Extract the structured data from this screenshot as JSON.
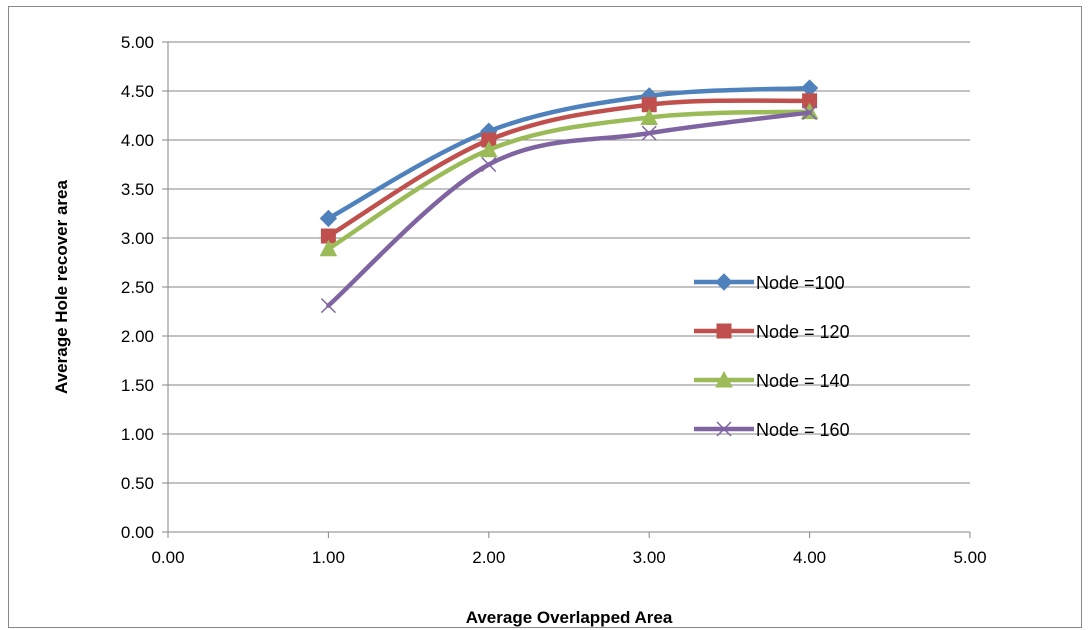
{
  "chart_data": {
    "type": "line",
    "title": "",
    "xlabel": "Average Overlapped Area",
    "ylabel": "Average Hole recover area",
    "xlim": [
      0,
      5
    ],
    "ylim": [
      0,
      5
    ],
    "x_ticks": [
      "0.00",
      "1.00",
      "2.00",
      "3.00",
      "4.00",
      "5.00"
    ],
    "y_ticks": [
      "0.00",
      "0.50",
      "1.00",
      "1.50",
      "2.00",
      "2.50",
      "3.00",
      "3.50",
      "4.00",
      "4.50",
      "5.00"
    ],
    "grid": "horizontal",
    "smooth": true,
    "legend_position": "right-inside",
    "series": [
      {
        "name": "Node =100",
        "color": "#4F81BD",
        "marker": "diamond",
        "x": [
          1,
          2,
          3,
          4
        ],
        "y": [
          3.2,
          4.09,
          4.45,
          4.53
        ]
      },
      {
        "name": "Node = 120",
        "color": "#C0504D",
        "marker": "square",
        "x": [
          1,
          2,
          3,
          4
        ],
        "y": [
          3.02,
          4.0,
          4.36,
          4.4
        ]
      },
      {
        "name": "Node = 140",
        "color": "#9BBB59",
        "marker": "triangle",
        "x": [
          1,
          2,
          3,
          4
        ],
        "y": [
          2.89,
          3.9,
          4.23,
          4.29
        ]
      },
      {
        "name": "Node = 160",
        "color": "#8064A2",
        "marker": "x",
        "x": [
          1,
          2,
          3,
          4
        ],
        "y": [
          2.31,
          3.75,
          4.07,
          4.28
        ]
      }
    ]
  }
}
